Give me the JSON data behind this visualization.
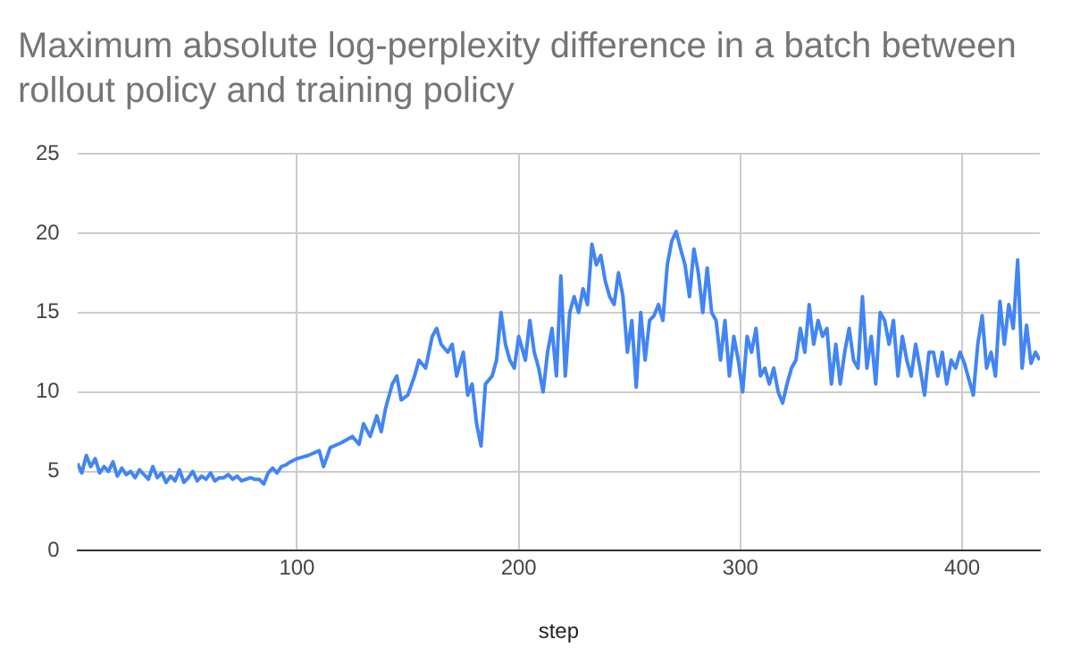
{
  "chart_data": {
    "type": "line",
    "title": "Maximum absolute log-perplexity difference in a batch between rollout policy and training policy",
    "xlabel": "step",
    "x": [
      1,
      3,
      5,
      7,
      9,
      11,
      13,
      15,
      17,
      19,
      21,
      23,
      25,
      27,
      29,
      31,
      33,
      35,
      37,
      39,
      41,
      43,
      45,
      47,
      49,
      51,
      53,
      55,
      57,
      59,
      61,
      63,
      65,
      67,
      69,
      71,
      73,
      75,
      77,
      79,
      81,
      83,
      85,
      87,
      89,
      91,
      93,
      95,
      97,
      100,
      105,
      110,
      112,
      115,
      120,
      125,
      128,
      130,
      133,
      136,
      138,
      140,
      143,
      145,
      147,
      150,
      153,
      155,
      158,
      161,
      163,
      165,
      168,
      170,
      172,
      175,
      177,
      179,
      181,
      183,
      185,
      188,
      190,
      192,
      194,
      196,
      198,
      200,
      203,
      205,
      207,
      209,
      211,
      213,
      215,
      217,
      219,
      221,
      223,
      225,
      227,
      229,
      231,
      233,
      235,
      237,
      239,
      241,
      243,
      245,
      247,
      249,
      251,
      253,
      255,
      257,
      259,
      261,
      263,
      265,
      267,
      269,
      271,
      273,
      275,
      277,
      279,
      281,
      283,
      285,
      287,
      289,
      291,
      293,
      295,
      297,
      299,
      301,
      303,
      305,
      307,
      309,
      311,
      313,
      315,
      317,
      319,
      321,
      323,
      325,
      327,
      329,
      331,
      333,
      335,
      337,
      339,
      341,
      343,
      345,
      347,
      349,
      351,
      353,
      355,
      357,
      359,
      361,
      363,
      365,
      367,
      369,
      371,
      373,
      375,
      377,
      379,
      381,
      383,
      385,
      387,
      389,
      391,
      393,
      395,
      397,
      399,
      401,
      403,
      405,
      407,
      409,
      411,
      413,
      415,
      417,
      419,
      421,
      423,
      425,
      427,
      429,
      431,
      433,
      435
    ],
    "series": [
      {
        "color": "#4285f4",
        "values": [
          5.5,
          4.9,
          6.0,
          5.3,
          5.8,
          4.9,
          5.3,
          5.0,
          5.6,
          4.7,
          5.2,
          4.8,
          5.0,
          4.6,
          5.1,
          4.8,
          4.5,
          5.3,
          4.6,
          4.9,
          4.3,
          4.7,
          4.4,
          5.1,
          4.3,
          4.6,
          5.0,
          4.4,
          4.7,
          4.5,
          4.9,
          4.4,
          4.6,
          4.6,
          4.8,
          4.5,
          4.7,
          4.4,
          4.5,
          4.6,
          4.5,
          4.5,
          4.2,
          4.9,
          5.2,
          4.9,
          5.3,
          5.4,
          5.6,
          5.8,
          6.0,
          6.3,
          5.3,
          6.5,
          6.8,
          7.2,
          6.7,
          8.0,
          7.2,
          8.5,
          7.5,
          9.0,
          10.5,
          11.0,
          9.5,
          9.8,
          11.0,
          12.0,
          11.5,
          13.5,
          14.0,
          13.0,
          12.5,
          13.0,
          11.0,
          12.5,
          9.8,
          10.5,
          8.0,
          6.6,
          10.5,
          11.0,
          12.0,
          15.0,
          13.0,
          12.0,
          11.5,
          13.5,
          12.0,
          14.5,
          12.5,
          11.5,
          10.0,
          12.5,
          14.0,
          11.0,
          17.3,
          11.0,
          15.0,
          16.0,
          15.0,
          16.5,
          15.5,
          19.3,
          18.0,
          18.6,
          17.0,
          16.0,
          15.5,
          17.5,
          16.0,
          12.5,
          14.5,
          10.3,
          15.0,
          12.0,
          14.5,
          14.8,
          15.5,
          14.5,
          18.0,
          19.5,
          20.1,
          19.0,
          18.0,
          16.0,
          19.0,
          17.5,
          15.0,
          17.8,
          15.0,
          14.5,
          12.0,
          14.5,
          11.0,
          13.5,
          12.0,
          10.0,
          13.5,
          12.5,
          14.0,
          11.0,
          11.5,
          10.5,
          11.5,
          10.0,
          9.3,
          10.5,
          11.5,
          12.0,
          14.0,
          12.5,
          15.5,
          13.0,
          14.5,
          13.5,
          14.0,
          10.5,
          13.0,
          10.5,
          12.5,
          14.0,
          12.0,
          11.5,
          16.0,
          11.5,
          13.5,
          10.5,
          15.0,
          14.5,
          13.0,
          14.5,
          11.0,
          13.5,
          12.0,
          11.0,
          13.0,
          11.5,
          9.8,
          12.5,
          12.5,
          11.0,
          12.5,
          10.5,
          12.0,
          11.5,
          12.5,
          11.8,
          10.8,
          9.8,
          13.0,
          14.8,
          11.5,
          12.5,
          11.0,
          15.7,
          13.0,
          15.5,
          14.0,
          18.3,
          11.5,
          14.2,
          11.8,
          12.5,
          12.0
        ]
      }
    ],
    "xlim": [
      1,
      435
    ],
    "xticks": [
      100,
      200,
      300,
      400
    ],
    "ylim": [
      0,
      25
    ],
    "yticks": [
      0,
      5,
      10,
      15,
      20,
      25
    ],
    "grid": true,
    "legend": false,
    "marker": "none",
    "line_style": "solid"
  }
}
